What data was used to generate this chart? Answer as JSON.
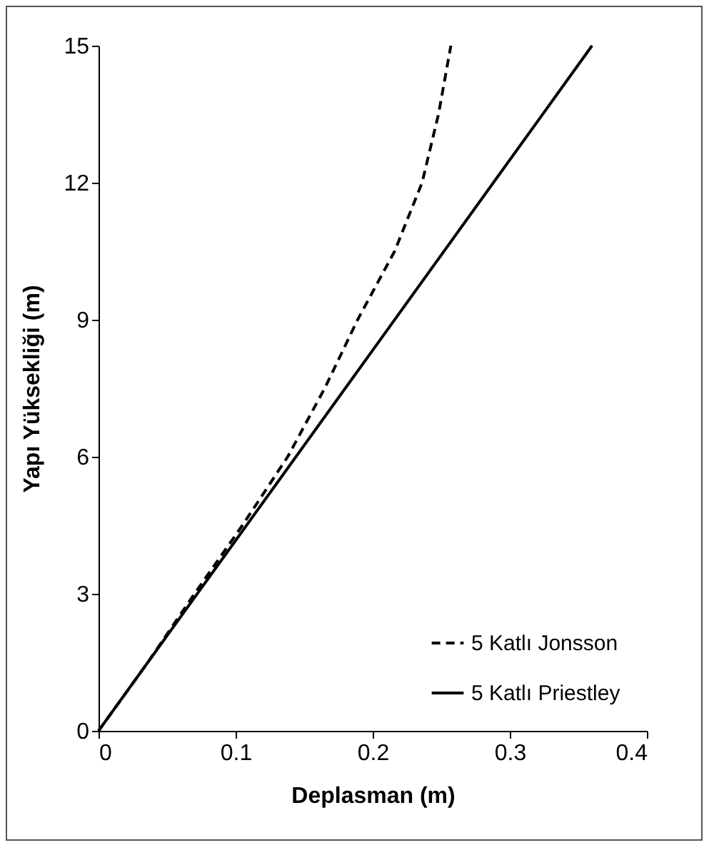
{
  "chart_data": {
    "type": "line",
    "xlabel": "Deplasman (m)",
    "ylabel": "Yapı Yüksekliği (m)",
    "xlim": [
      0,
      0.4
    ],
    "xticks": [
      0,
      0.1,
      0.2,
      0.3,
      0.4
    ],
    "ylim": [
      0,
      15
    ],
    "yticks": [
      0,
      3,
      6,
      9,
      12,
      15
    ],
    "grid": false,
    "legend": "bottom right",
    "marker": "none",
    "series": [
      {
        "name": "5 Katlı Jonsson",
        "color": "#000000",
        "line_style": "dashed",
        "x": [
          0,
          0.036,
          0.07,
          0.105,
          0.138,
          0.165,
          0.189,
          0.216,
          0.236,
          0.248,
          0.257
        ],
        "values": [
          0,
          1.5,
          3,
          4.5,
          6,
          7.5,
          9,
          10.5,
          12,
          13.5,
          15
        ]
      },
      {
        "name": "5 Katlı Priestley",
        "color": "#000000",
        "line_style": "solid",
        "x": [
          0,
          0.36
        ],
        "values": [
          0,
          15
        ]
      }
    ]
  }
}
